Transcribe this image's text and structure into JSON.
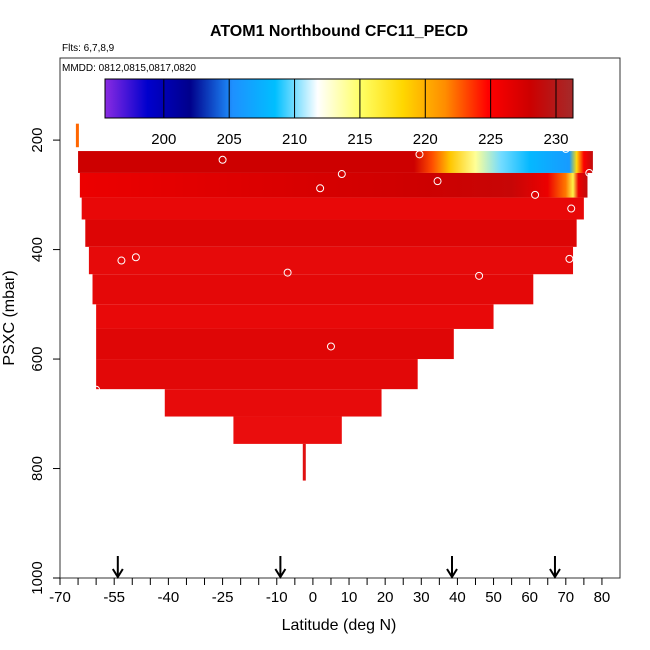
{
  "chart_data": {
    "type": "heatmap",
    "title": "ATOM1 Northbound CFC11_PECD",
    "subtitle_flights": "Flts: 6,7,8,9",
    "subtitle_dates": "MMDD: 0812,0815,0817,0820",
    "xlabel": "Latitude (deg N)",
    "ylabel": "PSXC (mbar)",
    "xlim": [
      -70,
      85
    ],
    "ylim": [
      1000,
      50
    ],
    "x_ticks": [
      "-70",
      "-55",
      "-40",
      "-25",
      "-10",
      "0",
      "10",
      "20",
      "30",
      "40",
      "50",
      "60",
      "70",
      "80"
    ],
    "x_tick_values": [
      -70,
      -55,
      -40,
      -25,
      -10,
      0,
      10,
      20,
      30,
      40,
      50,
      60,
      70,
      80
    ],
    "y_ticks": [
      "200",
      "400",
      "600",
      "800",
      "1000"
    ],
    "y_tick_values": [
      200,
      400,
      600,
      800,
      1000
    ],
    "colorbar": {
      "range": [
        195.5,
        231.3
      ],
      "ticks": [
        "200",
        "205",
        "210",
        "215",
        "220",
        "225",
        "230"
      ],
      "tick_values": [
        200,
        205,
        210,
        215,
        220,
        225,
        230
      ],
      "colors": [
        "#8a2be2",
        "#0000cd",
        "#00008b",
        "#1e90ff",
        "#00bfff",
        "#ffffff",
        "#ffff66",
        "#ffd700",
        "#ff8c00",
        "#ff0000",
        "#cc0000",
        "#a52a2a"
      ]
    },
    "layers": [
      {
        "p_top": 220,
        "p_bot": 260,
        "x_left": -65,
        "x_right": 77.5
      },
      {
        "p_top": 260,
        "p_bot": 305,
        "x_left": -64.5,
        "x_right": 76
      },
      {
        "p_top": 305,
        "p_bot": 345,
        "x_left": -64,
        "x_right": 75
      },
      {
        "p_top": 345,
        "p_bot": 395,
        "x_left": -63,
        "x_right": 73
      },
      {
        "p_top": 395,
        "p_bot": 445,
        "x_left": -62,
        "x_right": 72
      },
      {
        "p_top": 445,
        "p_bot": 500,
        "x_left": -61,
        "x_right": 61
      },
      {
        "p_top": 500,
        "p_bot": 545,
        "x_left": -60,
        "x_right": 50
      },
      {
        "p_top": 545,
        "p_bot": 600,
        "x_left": -60,
        "x_right": 39
      },
      {
        "p_top": 600,
        "p_bot": 655,
        "x_left": -60,
        "x_right": 29
      },
      {
        "p_top": 655,
        "p_bot": 705,
        "x_left": -41,
        "x_right": 19
      },
      {
        "p_top": 705,
        "p_bot": 755,
        "x_left": -22,
        "x_right": 8
      }
    ],
    "upper_layer_gradient": [
      {
        "lat": -65,
        "value": 228
      },
      {
        "lat": 28,
        "value": 228
      },
      {
        "lat": 33,
        "value": 223
      },
      {
        "lat": 38,
        "value": 219
      },
      {
        "lat": 45,
        "value": 214
      },
      {
        "lat": 52,
        "value": 210
      },
      {
        "lat": 60,
        "value": 208
      },
      {
        "lat": 68,
        "value": 206.5
      },
      {
        "lat": 71,
        "value": 206
      },
      {
        "lat": 73,
        "value": 218
      },
      {
        "lat": 75,
        "value": 225
      },
      {
        "lat": 77.5,
        "value": 229
      }
    ],
    "second_layer_gradient": [
      {
        "lat": -64.5,
        "value": 226
      },
      {
        "lat": 30,
        "value": 228
      },
      {
        "lat": 55,
        "value": 228.5
      },
      {
        "lat": 65,
        "value": 226
      },
      {
        "lat": 70,
        "value": 222
      },
      {
        "lat": 72,
        "value": 216
      },
      {
        "lat": 73.5,
        "value": 226
      },
      {
        "lat": 76,
        "value": 229
      }
    ],
    "markers": [
      {
        "lat": -25,
        "p": 236
      },
      {
        "lat": 29.5,
        "p": 226
      },
      {
        "lat": 70,
        "p": 216
      },
      {
        "lat": 8,
        "p": 262
      },
      {
        "lat": 2,
        "p": 288
      },
      {
        "lat": 34.5,
        "p": 275
      },
      {
        "lat": 61.5,
        "p": 300
      },
      {
        "lat": 76.5,
        "p": 260
      },
      {
        "lat": 71.5,
        "p": 325
      },
      {
        "lat": -53,
        "p": 420
      },
      {
        "lat": -49,
        "p": 414
      },
      {
        "lat": -7,
        "p": 442
      },
      {
        "lat": 46,
        "p": 448
      },
      {
        "lat": 71,
        "p": 417
      },
      {
        "lat": 5,
        "p": 577
      },
      {
        "lat": -60,
        "p": 656
      }
    ],
    "vertical_arrows_lat": [
      -54,
      -9,
      38.5,
      67
    ]
  }
}
